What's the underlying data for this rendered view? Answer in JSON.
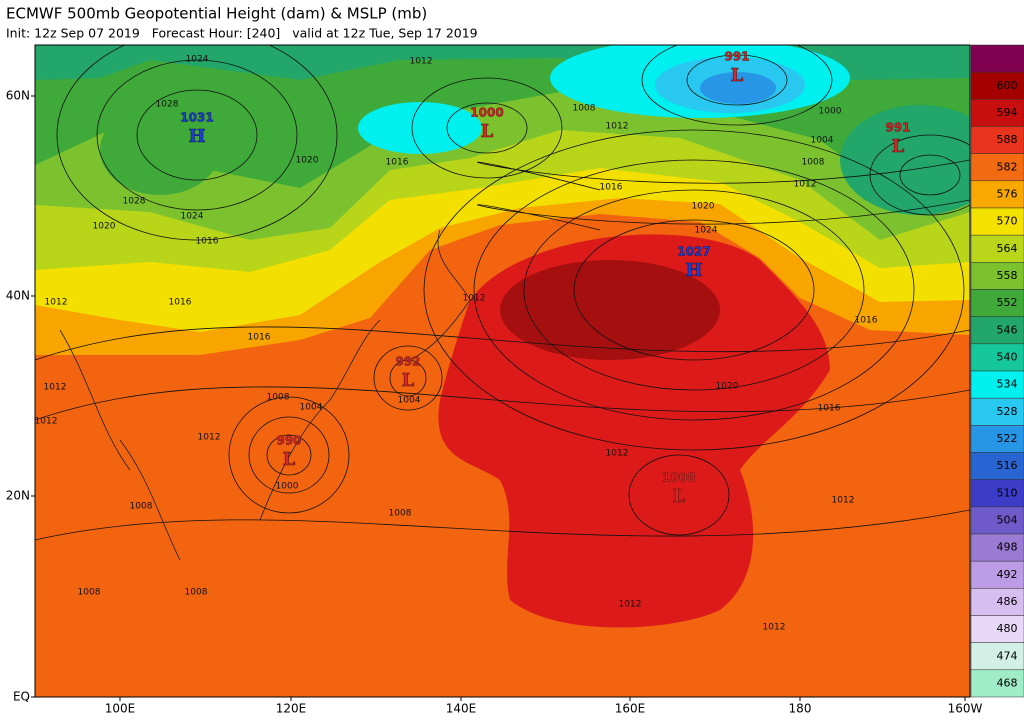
{
  "header": {
    "title": "ECMWF 500mb Geopotential Height (dam) & MSLP (mb)",
    "subtitle": "Init: 12z Sep 07 2019   Forecast Hour: [240]   valid at 12z Tue, Sep 17 2019"
  },
  "map": {
    "lat_labels": [
      "60N",
      "40N",
      "20N",
      "EQ"
    ],
    "lon_labels": [
      "100E",
      "120E",
      "140E",
      "160E",
      "180",
      "160W"
    ],
    "pressure_centers": [
      {
        "value": "1031",
        "letter": "H"
      },
      {
        "value": "1000",
        "letter": "L"
      },
      {
        "value": "991",
        "letter": "L"
      },
      {
        "value": "991",
        "letter": "L"
      },
      {
        "value": "1027",
        "letter": "H"
      },
      {
        "value": "992",
        "letter": "L"
      },
      {
        "value": "990",
        "letter": "L"
      },
      {
        "value": "1008",
        "letter": "L"
      }
    ],
    "isobar_labels": [
      "1024",
      "1028",
      "1028",
      "1024",
      "1020",
      "1016",
      "1012",
      "1016",
      "1016",
      "1012",
      "1012",
      "1008",
      "1004",
      "1004",
      "1012",
      "1000",
      "1008",
      "1008",
      "1008",
      "1008",
      "1012",
      "1020",
      "1016",
      "1008",
      "1012",
      "1016",
      "1000",
      "1004",
      "1008",
      "1012",
      "1020",
      "1024",
      "1012",
      "1020",
      "1016",
      "1012",
      "1012",
      "1012",
      "1012",
      "1016"
    ]
  },
  "colorbar": {
    "levels": [
      "600",
      "594",
      "588",
      "582",
      "576",
      "570",
      "564",
      "558",
      "552",
      "546",
      "540",
      "534",
      "528",
      "522",
      "516",
      "510",
      "504",
      "498",
      "492",
      "486",
      "480",
      "474",
      "468"
    ]
  }
}
